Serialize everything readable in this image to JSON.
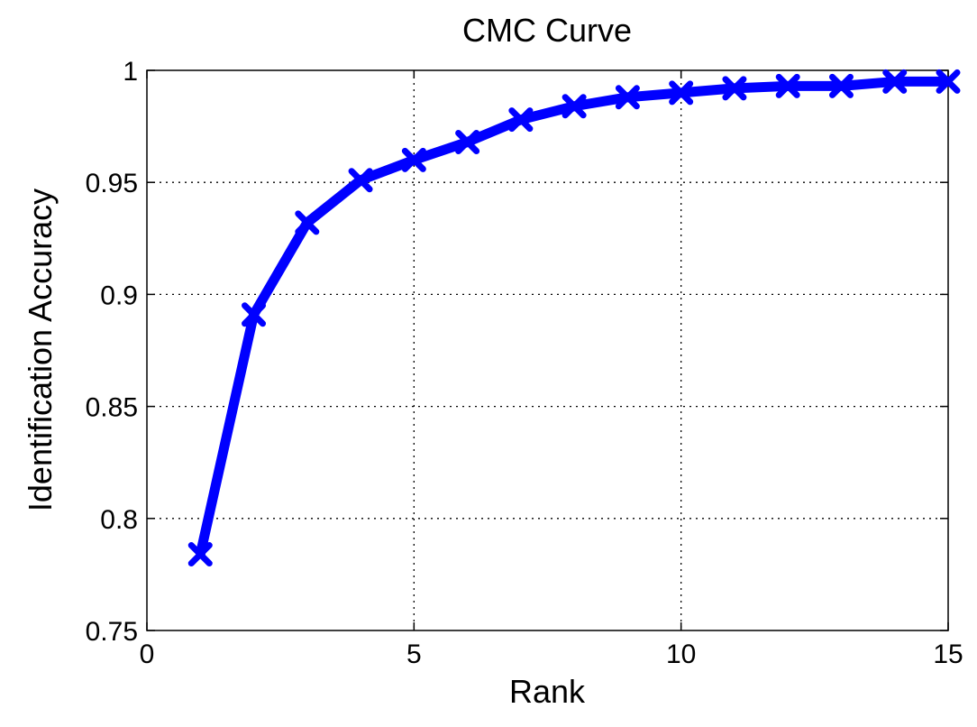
{
  "chart_data": {
    "type": "line",
    "title": "CMC Curve",
    "xlabel": "Rank",
    "ylabel": "Identification Accuracy",
    "xlim": [
      0,
      15
    ],
    "ylim": [
      0.75,
      1
    ],
    "xticks": [
      "0",
      "5",
      "10",
      "15"
    ],
    "yticks": [
      "0.75",
      "0.8",
      "0.85",
      "0.9",
      "0.95",
      "1"
    ],
    "grid": true,
    "grid_style": "dotted",
    "marker": "x",
    "series": [
      {
        "color": "#0000ff",
        "x": [
          1,
          2,
          3,
          4,
          5,
          6,
          7,
          8,
          9,
          10,
          11,
          12,
          13,
          14,
          15
        ],
        "values": [
          0.784,
          0.891,
          0.932,
          0.951,
          0.96,
          0.968,
          0.978,
          0.984,
          0.988,
          0.99,
          0.992,
          0.993,
          0.993,
          0.995,
          0.995
        ]
      }
    ]
  }
}
